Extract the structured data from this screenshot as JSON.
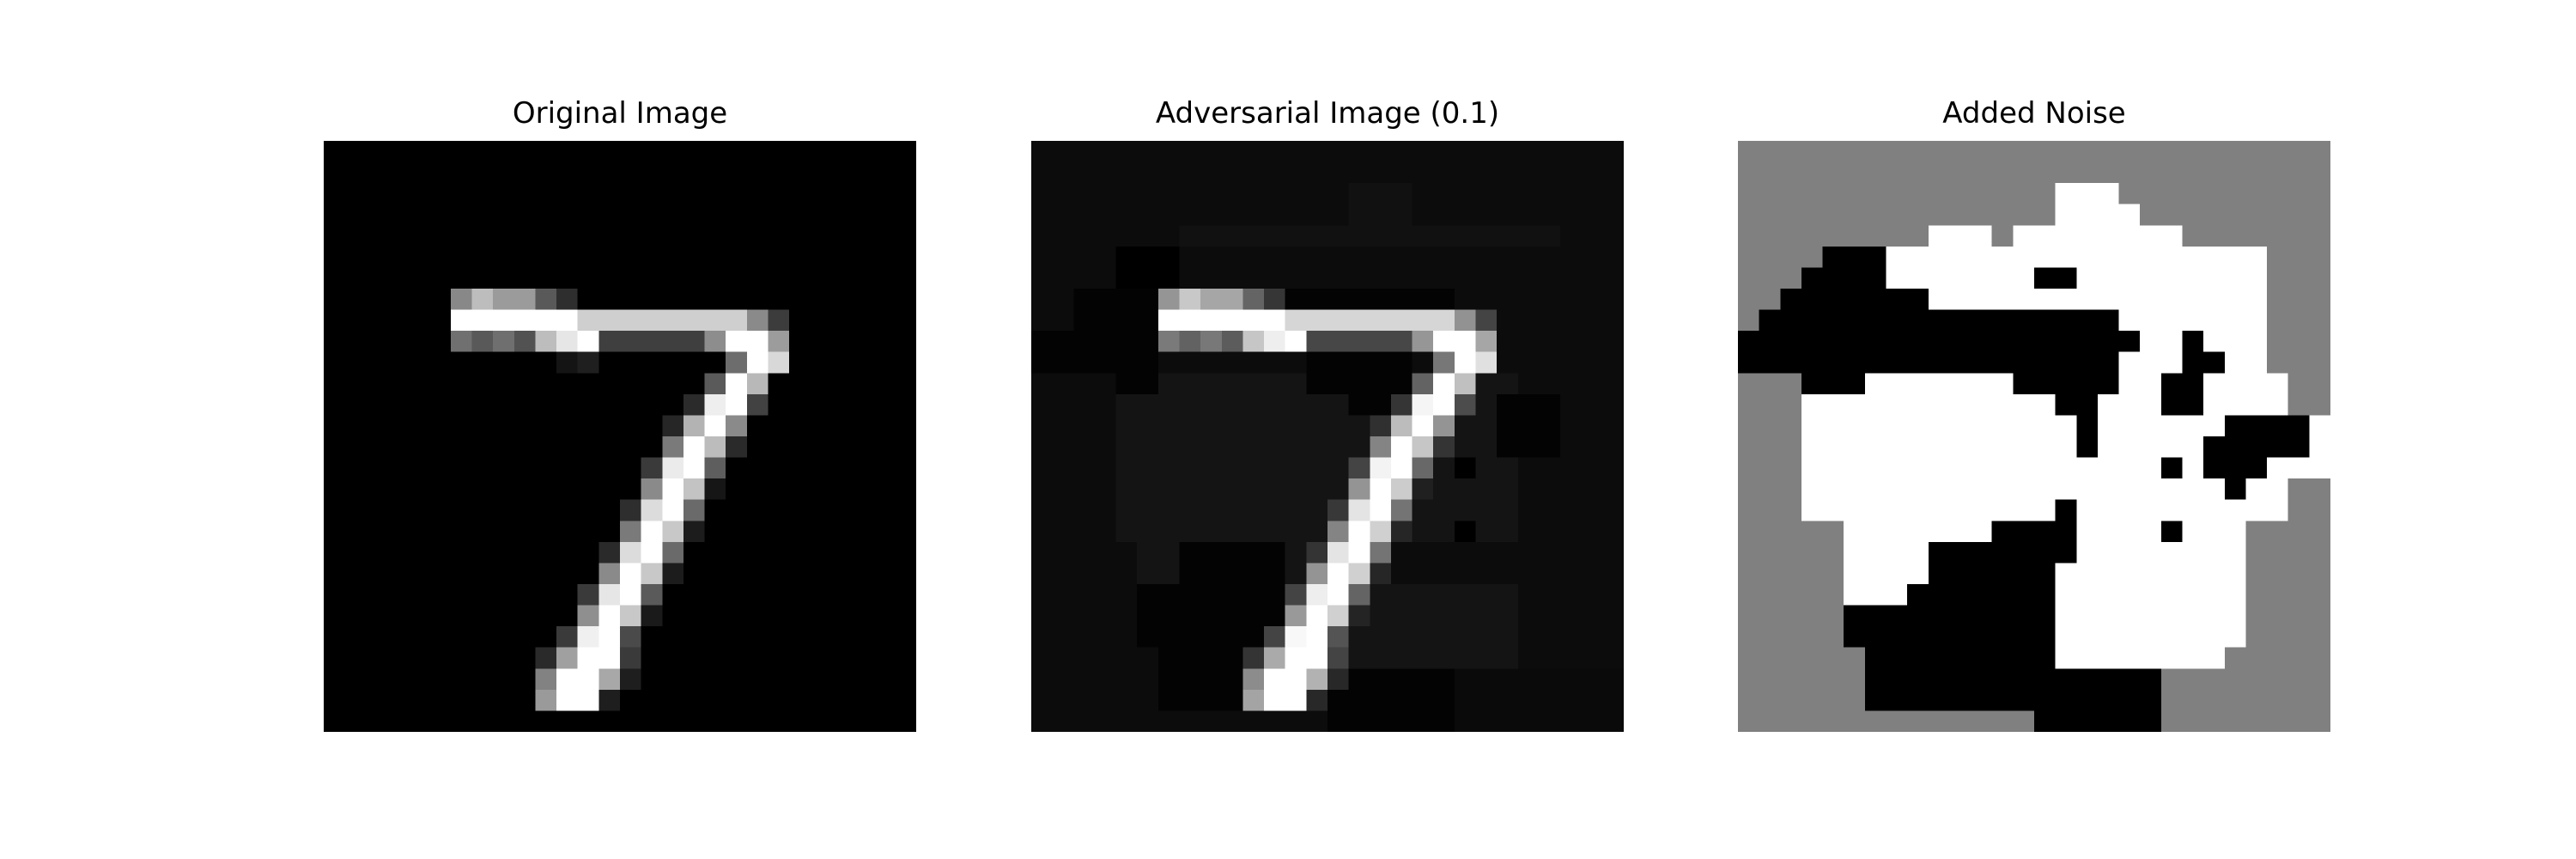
{
  "panels": [
    {
      "id": "original",
      "title": "Original Image"
    },
    {
      "id": "adversarial",
      "title": "Adversarial Image (0.1)"
    },
    {
      "id": "noise",
      "title": "Added Noise"
    }
  ],
  "colors": {
    "background": "#ffffff",
    "title_text": "#000000",
    "image_black": "#000000",
    "image_white": "#ffffff",
    "noise_zero_gray": "#808080",
    "adversarial_base": "#0c0c0c"
  }
}
